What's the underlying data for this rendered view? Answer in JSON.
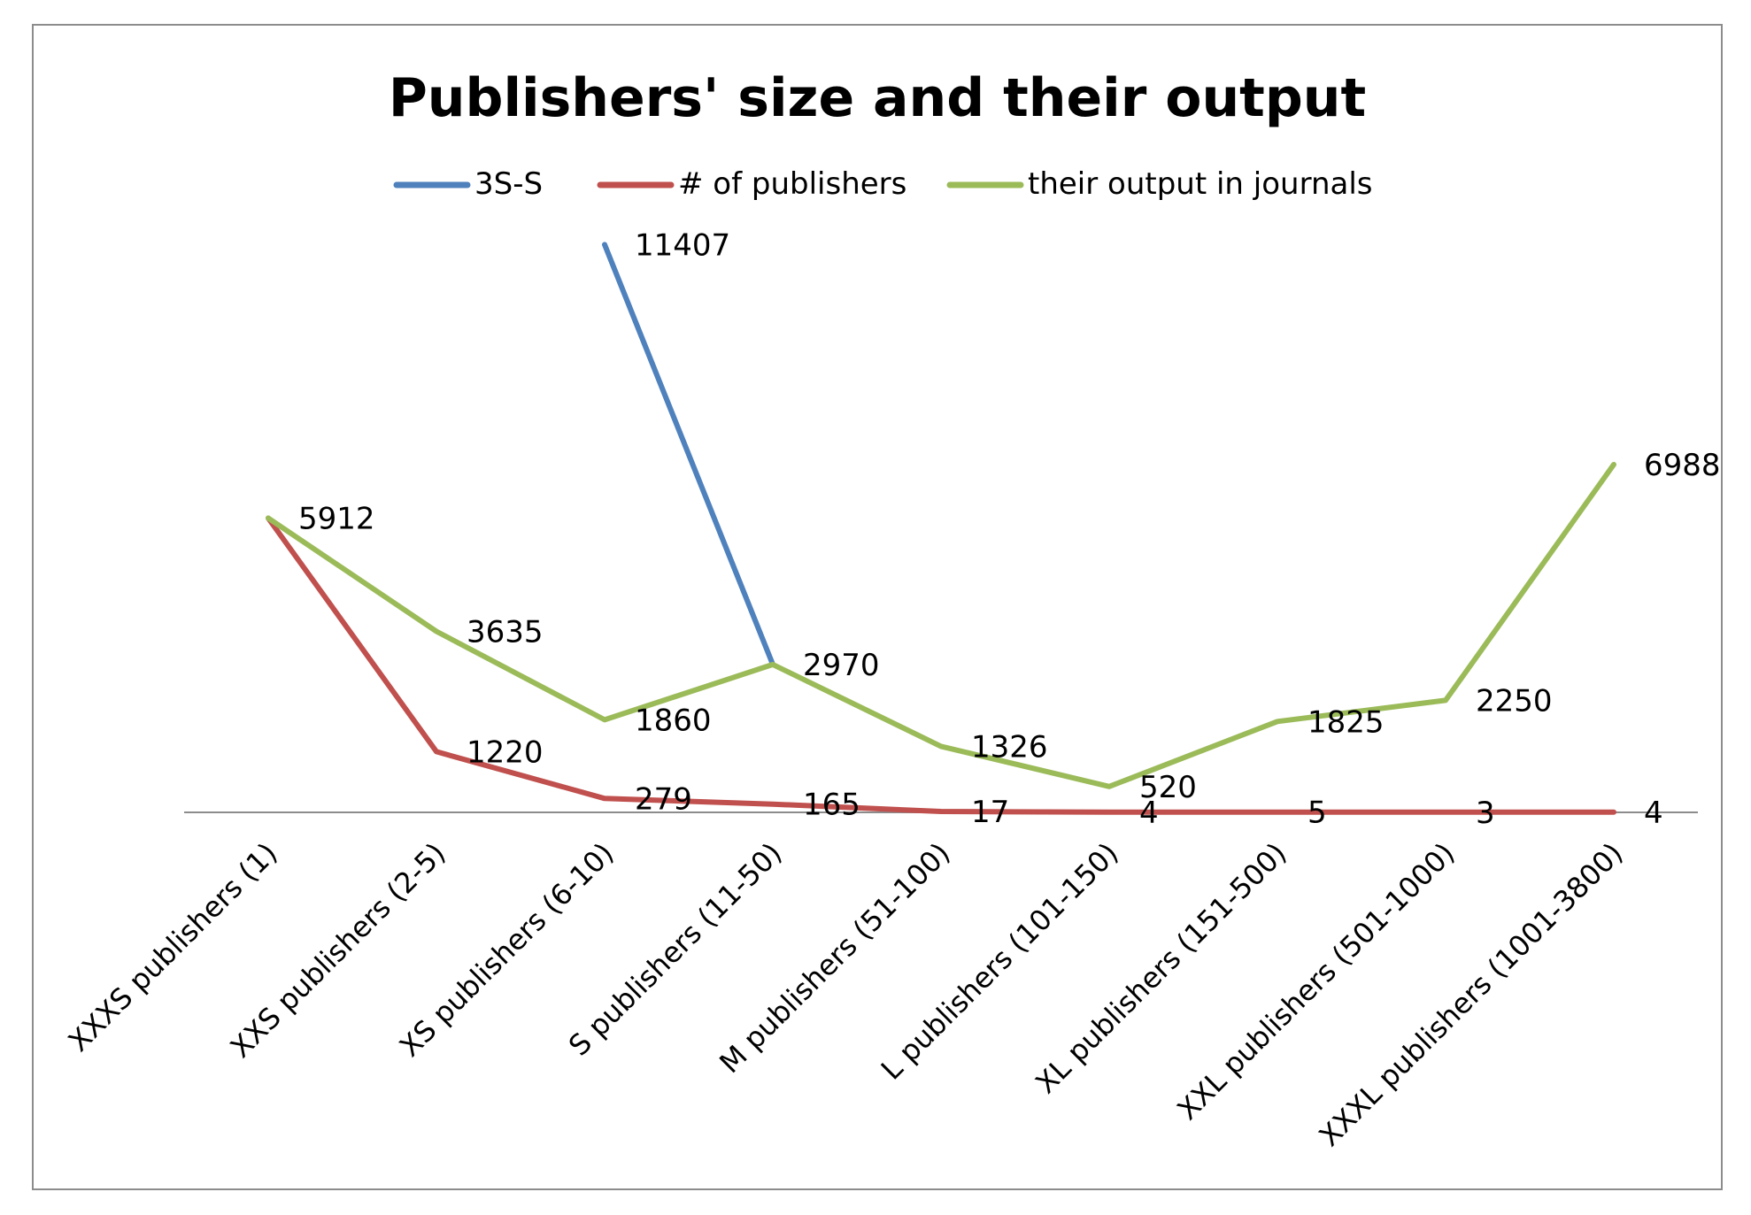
{
  "chart_data": {
    "type": "line",
    "title": "Publishers' size and their output",
    "xlabel": "",
    "ylabel": "",
    "legend_position": "top",
    "grid": false,
    "ylim": [
      0,
      12000
    ],
    "categories": [
      "XXXS publishers (1)",
      "XXS publishers (2-5)",
      "XS publishers (6-10)",
      "S publishers (11-50)",
      "M publishers (51-100)",
      "L publishers (101-150)",
      "XL publishers (151-500)",
      "XXL publishers (501-1000)",
      "XXXL publishers (1001-3800)"
    ],
    "series": [
      {
        "name": "3S-S",
        "color": "#4F81BD",
        "values": [
          null,
          null,
          11407,
          2970,
          null,
          null,
          null,
          null,
          null
        ],
        "labels": [
          null,
          null,
          "11407",
          null,
          null,
          null,
          null,
          null,
          null
        ]
      },
      {
        "name": "# of publishers",
        "color": "#C0504D",
        "values": [
          5912,
          1220,
          279,
          165,
          17,
          4,
          5,
          3,
          4
        ],
        "labels": [
          null,
          "1220",
          "279",
          "165",
          "17",
          "4",
          "5",
          "3",
          "4"
        ]
      },
      {
        "name": "their output in journals",
        "color": "#9BBB59",
        "values": [
          5912,
          3635,
          1860,
          2970,
          1326,
          520,
          1825,
          2250,
          6988
        ],
        "labels": [
          "5912",
          "3635",
          "1860",
          "2970",
          "1326",
          "520",
          "1825",
          "2250",
          "6988"
        ]
      }
    ]
  }
}
